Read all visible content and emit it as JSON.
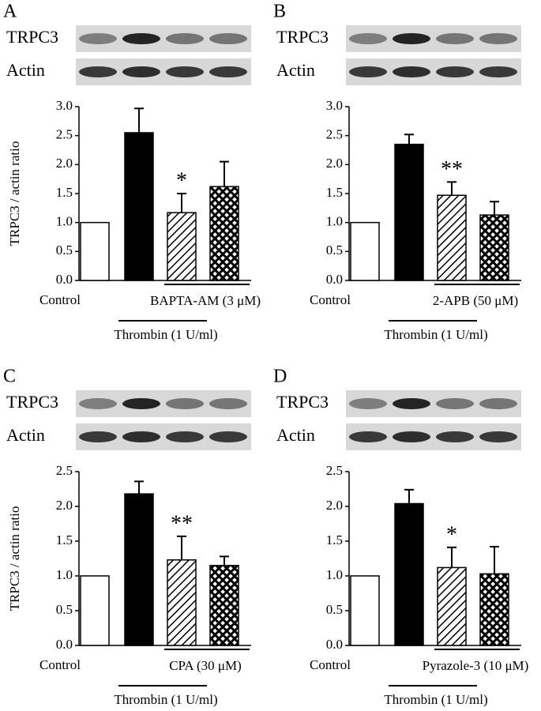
{
  "chart_data": [
    {
      "type": "bar",
      "panel": "A",
      "blot_labels": [
        "TRPC3",
        "Actin"
      ],
      "ylabel": "TRPC3 / actin ratio",
      "ylim": [
        0,
        3
      ],
      "yticks": [
        {
          "value": 0,
          "label": "0.0"
        },
        0.5,
        {
          "value": 1,
          "label": "1.0"
        },
        1.5,
        {
          "value": 2,
          "label": "2.0"
        },
        2.5,
        {
          "value": 3,
          "label": "3.0"
        }
      ],
      "values": [
        1.0,
        2.55,
        1.17,
        1.62
      ],
      "errors": [
        null,
        0.42,
        0.33,
        0.43
      ],
      "markers": [
        null,
        null,
        "*",
        null
      ],
      "control_label": "Control",
      "treatment_label": "BAPTA-AM (3 μM)",
      "stimulus_label": "Thrombin (1 U/ml)"
    },
    {
      "type": "bar",
      "panel": "B",
      "blot_labels": [
        "TRPC3",
        "Actin"
      ],
      "ylim": [
        0,
        3
      ],
      "yticks": [
        {
          "value": 0,
          "label": "0.0"
        },
        0.5,
        {
          "value": 1,
          "label": "1.0"
        },
        1.5,
        {
          "value": 2,
          "label": "2.0"
        },
        2.5,
        {
          "value": 3,
          "label": "3.0"
        }
      ],
      "values": [
        1.0,
        2.35,
        1.47,
        1.13
      ],
      "errors": [
        null,
        0.17,
        0.23,
        0.23
      ],
      "markers": [
        null,
        null,
        "**",
        null
      ],
      "control_label": "Control",
      "treatment_label": "2-APB (50 μM)",
      "stimulus_label": "Thrombin (1 U/ml)"
    },
    {
      "type": "bar",
      "panel": "C",
      "blot_labels": [
        "TRPC3",
        "Actin"
      ],
      "ylabel": "TRPC3 / actin ratio",
      "ylim": [
        0,
        2.5
      ],
      "yticks": [
        {
          "value": 0,
          "label": "0.0"
        },
        0.5,
        {
          "value": 1,
          "label": "1.0"
        },
        1.5,
        {
          "value": 2,
          "label": "2.0"
        },
        2.5
      ],
      "values": [
        1.0,
        2.18,
        1.23,
        1.15
      ],
      "errors": [
        null,
        0.18,
        0.34,
        0.13
      ],
      "markers": [
        null,
        null,
        "**",
        null
      ],
      "control_label": "Control",
      "treatment_label": "CPA (30 μM)",
      "stimulus_label": "Thrombin (1 U/ml)"
    },
    {
      "type": "bar",
      "panel": "D",
      "blot_labels": [
        "TRPC3",
        "Actin"
      ],
      "ylim": [
        0,
        2.5
      ],
      "yticks": [
        {
          "value": 0,
          "label": "0.0"
        },
        0.5,
        {
          "value": 1,
          "label": "1.0"
        },
        1.5,
        {
          "value": 2,
          "label": "2.0"
        },
        2.5
      ],
      "values": [
        1.0,
        2.04,
        1.12,
        1.03
      ],
      "errors": [
        null,
        0.2,
        0.29,
        0.39
      ],
      "markers": [
        null,
        null,
        "*",
        null
      ],
      "control_label": "Control",
      "treatment_label": "Pyrazole-3 (10 μM)",
      "stimulus_label": "Thrombin (1 U/ml)"
    }
  ]
}
